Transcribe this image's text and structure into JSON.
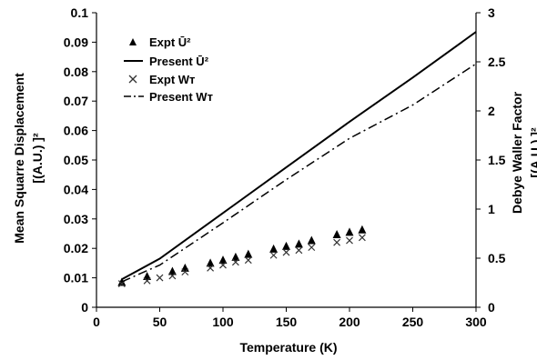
{
  "chart_data": {
    "type": "line",
    "x_axis": {
      "label": "Temperature (K)",
      "range": [
        0,
        300
      ],
      "ticks": [
        0,
        50,
        100,
        150,
        200,
        250,
        300
      ],
      "tick_labels": [
        "0",
        "50",
        "100",
        "150",
        "200",
        "250",
        "300"
      ]
    },
    "y_axis_left": {
      "label_lines": [
        "Mean Squarre Displacement",
        "[(A.U.) ]²"
      ],
      "range": [
        0,
        0.1
      ],
      "ticks": [
        0,
        0.01,
        0.02,
        0.03,
        0.04,
        0.05,
        0.06,
        0.07,
        0.08,
        0.09,
        0.1
      ],
      "tick_labels": [
        "0",
        "0.01",
        "0.02",
        "0.03",
        "0.04",
        "0.05",
        "0.06",
        "0.07",
        "0.08",
        "0.09",
        "0.1"
      ]
    },
    "y_axis_right": {
      "label_lines": [
        "Debye Waller Factor",
        "[(A.U.) ]²"
      ],
      "range": [
        0,
        3
      ],
      "ticks": [
        0,
        0.5,
        1,
        1.5,
        2,
        2.5,
        3
      ],
      "tick_labels": [
        "0",
        "0.5",
        "1",
        "1.5",
        "2",
        "2.5",
        "3"
      ]
    },
    "grid": false,
    "legend_position": "top-left inside",
    "series": [
      {
        "name": "Expt Ū²",
        "style": "triangle-markers",
        "axis": "left",
        "x": [
          20,
          40,
          60,
          70,
          90,
          100,
          110,
          120,
          140,
          150,
          160,
          170,
          190,
          200,
          210
        ],
        "y": [
          0.0085,
          0.0105,
          0.0122,
          0.0133,
          0.015,
          0.016,
          0.017,
          0.018,
          0.0198,
          0.0207,
          0.0215,
          0.0227,
          0.0247,
          0.0255,
          0.0263
        ]
      },
      {
        "name": "Present Ū²",
        "style": "solid-line",
        "axis": "left",
        "x": [
          20,
          50,
          100,
          150,
          200,
          250,
          300
        ],
        "y": [
          0.0095,
          0.0165,
          0.032,
          0.0475,
          0.063,
          0.078,
          0.0935
        ]
      },
      {
        "name": "Expt Wᴛ",
        "style": "x-markers",
        "axis": "right",
        "x": [
          20,
          40,
          50,
          60,
          70,
          90,
          100,
          110,
          120,
          140,
          150,
          160,
          170,
          190,
          200,
          210
        ],
        "y": [
          0.24,
          0.27,
          0.3,
          0.32,
          0.36,
          0.4,
          0.43,
          0.46,
          0.48,
          0.53,
          0.56,
          0.58,
          0.61,
          0.66,
          0.68,
          0.71
        ]
      },
      {
        "name": "Present Wᴛ",
        "style": "dash-dot-line",
        "axis": "right",
        "x": [
          20,
          50,
          100,
          150,
          200,
          250,
          300
        ],
        "y": [
          0.26,
          0.43,
          0.86,
          1.3,
          1.72,
          2.06,
          2.48
        ]
      }
    ]
  }
}
